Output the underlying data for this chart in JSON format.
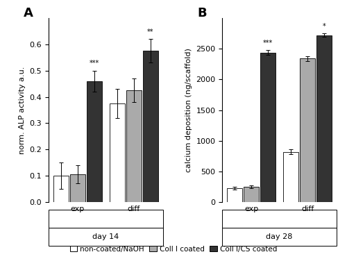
{
  "panel_A": {
    "title": "A",
    "ylabel": "norm. ALP activity a.u.",
    "xlabel_groups": [
      "exp",
      "diff"
    ],
    "xlabel_day": "day 14",
    "groups": {
      "exp": {
        "non_coated": {
          "mean": 0.1,
          "err": 0.05
        },
        "coll_I": {
          "mean": 0.105,
          "err": 0.035
        },
        "coll_ICS": {
          "mean": 0.46,
          "err": 0.04
        }
      },
      "diff": {
        "non_coated": {
          "mean": 0.375,
          "err": 0.055
        },
        "coll_I": {
          "mean": 0.425,
          "err": 0.045
        },
        "coll_ICS": {
          "mean": 0.575,
          "err": 0.045
        }
      }
    },
    "significance": {
      "exp_coll_ICS": "***",
      "diff_coll_ICS": "**"
    },
    "ylim": [
      0,
      0.7
    ],
    "yticks": [
      0.0,
      0.1,
      0.2,
      0.3,
      0.4,
      0.5,
      0.6
    ]
  },
  "panel_B": {
    "title": "B",
    "ylabel": "calcium deposition (ng/scaffold)",
    "xlabel_groups": [
      "exp",
      "diff"
    ],
    "xlabel_day": "day 28",
    "groups": {
      "exp": {
        "non_coated": {
          "mean": 225,
          "err": 20
        },
        "coll_I": {
          "mean": 250,
          "err": 20
        },
        "coll_ICS": {
          "mean": 2440,
          "err": 40
        }
      },
      "diff": {
        "non_coated": {
          "mean": 820,
          "err": 40
        },
        "coll_I": {
          "mean": 2340,
          "err": 40
        },
        "coll_ICS": {
          "mean": 2720,
          "err": 30
        }
      }
    },
    "significance": {
      "exp_coll_ICS": "***",
      "diff_coll_ICS": "*"
    },
    "ylim": [
      0,
      3000
    ],
    "yticks": [
      0,
      500,
      1000,
      1500,
      2000,
      2500
    ]
  },
  "colors": {
    "non_coated": "#ffffff",
    "coll_I": "#aaaaaa",
    "coll_ICS": "#333333"
  },
  "legend_labels": [
    "non-coated/NaOH",
    "Coll I coated",
    "Coll I/CS coated"
  ],
  "bar_width": 0.16,
  "bar_edge_color": "#000000",
  "background_color": "#ffffff",
  "fontsize": 8
}
